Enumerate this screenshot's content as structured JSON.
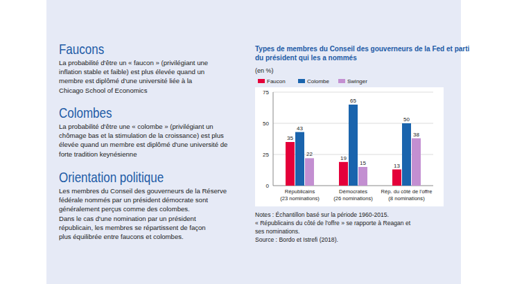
{
  "chart_data": {
    "type": "bar",
    "title": "Types de membres du Conseil des gouverneurs de la Fed et parti\ndu président qui les a nommés",
    "subtitle": "(en %)",
    "categories": [
      "Républicains\n(23 nominations)",
      "Démocrates\n(26 nominations)",
      "Rép. du côté de l'offre\n(8 nominations)"
    ],
    "series": [
      {
        "name": "Faucon",
        "color": "#e4003a",
        "values": [
          35,
          19,
          13
        ]
      },
      {
        "name": "Colombe",
        "color": "#1a64ad",
        "values": [
          43,
          65,
          50
        ]
      },
      {
        "name": "Swinger",
        "color": "#c38fd1",
        "values": [
          22,
          15,
          38
        ]
      }
    ],
    "ylim": [
      0,
      75
    ],
    "yticks": [
      0,
      25,
      50,
      75
    ],
    "grid": true,
    "data_labels": true,
    "legend": "top-left",
    "notes": [
      "Notes : Échantillon basé sur la période 1960-2015.",
      "« Républicains du côté de l'offre » se rapporte à Reagan et",
      "ses nominations.",
      "Source : Bordo et Istrefi (2018)."
    ]
  },
  "sections": [
    {
      "heading": "Faucons",
      "lines": [
        "La probabilité d'être un « faucon » (privilégiant une",
        "inflation stable et faible) est plus élevée quand un",
        "membre est diplômé d'une université liée à la",
        "Chicago School of Economics"
      ]
    },
    {
      "heading": "Colombes",
      "lines": [
        "La probabilité d'être une « colombe » (privilégiant un",
        "chômage bas et la stimulation de la croissance) est plus",
        "élevée quand un membre est diplômé d'une université de",
        "forte tradition keynésienne"
      ]
    },
    {
      "heading": "Orientation politique",
      "lines": [
        "Les membres du Conseil des gouverneurs de la Réserve",
        "fédérale nommés par un président démocrate sont",
        "généralement perçus comme des colombes.",
        "Dans le cas d'une nomination par un président",
        "républicain, les membres se répartissent de façon",
        "plus équilibrée entre faucons et colombes."
      ]
    }
  ]
}
